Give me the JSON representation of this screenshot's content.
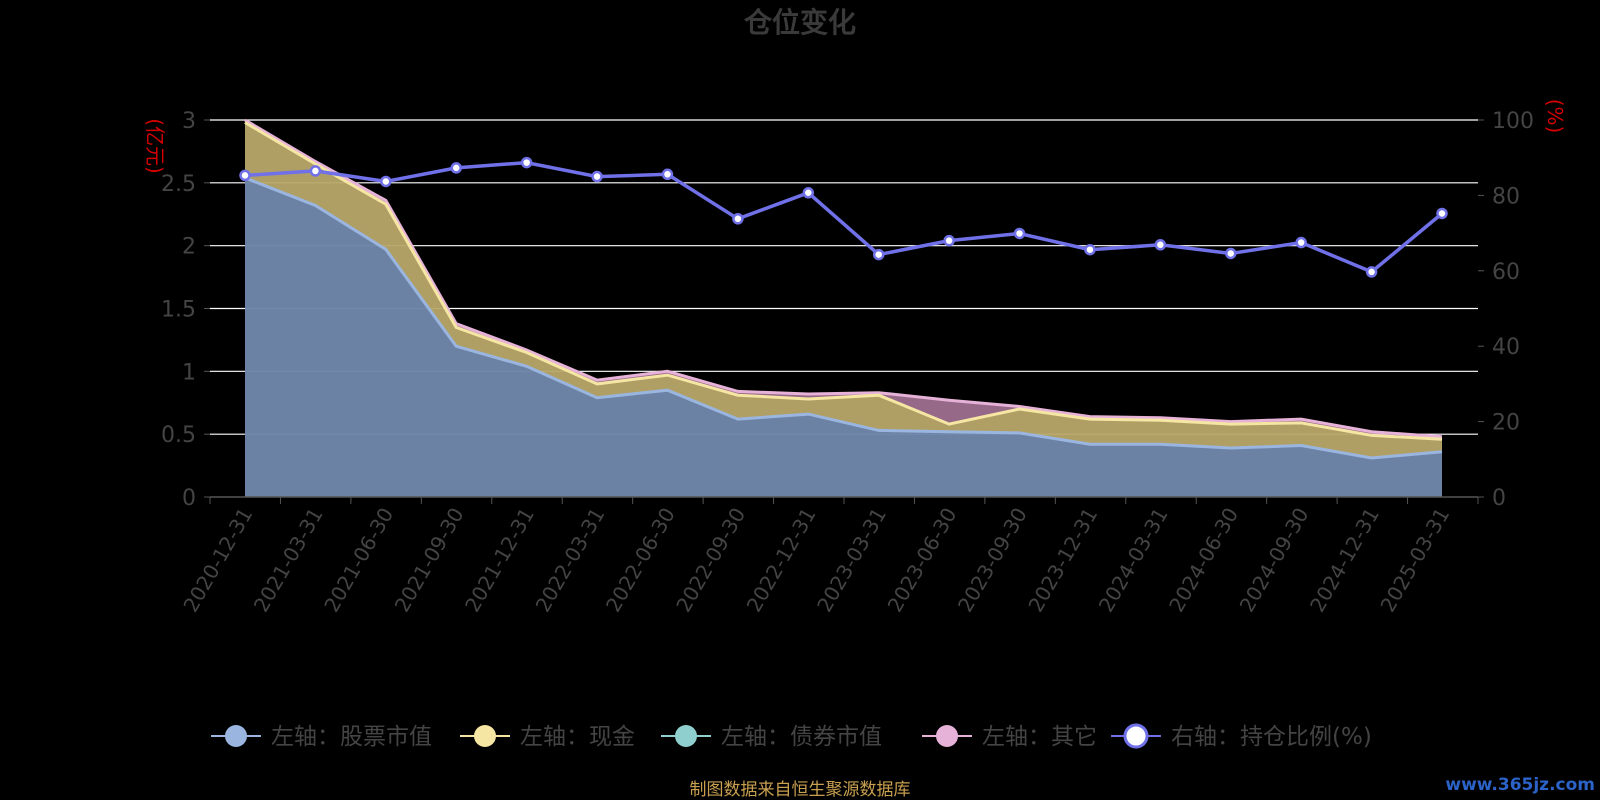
{
  "title": "仓位变化",
  "left_unit": "(亿元)",
  "right_unit": "(%)",
  "source_note": "制图数据来自恒生聚源数据库",
  "watermark": "www.365jz.com",
  "colors": {
    "stock": "#9ab6e0",
    "cash": "#f5e6a3",
    "bond": "#8fd0cf",
    "other": "#e6b2d8",
    "ratio": "#7070e8",
    "grid": "#ffffff",
    "axis": "#555555"
  },
  "chart_data": {
    "type": "area",
    "title": "仓位变化",
    "x": [
      "2020-12-31",
      "2021-03-31",
      "2021-06-30",
      "2021-09-30",
      "2021-12-31",
      "2022-03-31",
      "2022-06-30",
      "2022-09-30",
      "2022-12-31",
      "2023-03-31",
      "2023-06-30",
      "2023-09-30",
      "2023-12-31",
      "2024-03-31",
      "2024-06-30",
      "2024-09-30",
      "2024-12-31",
      "2025-03-31"
    ],
    "y_left": {
      "label": "(亿元)",
      "range": [
        0,
        3
      ],
      "ticks": [
        0,
        0.5,
        1,
        1.5,
        2,
        2.5,
        3
      ]
    },
    "y_right": {
      "label": "(%)",
      "range": [
        0,
        100
      ],
      "ticks": [
        0,
        20,
        40,
        60,
        80,
        100
      ]
    },
    "grid": true,
    "legend_position": "bottom",
    "series": [
      {
        "name": "左轴：股票市值",
        "axis": "left",
        "key": "stock",
        "values": [
          2.54,
          2.32,
          1.97,
          1.2,
          1.04,
          0.79,
          0.85,
          0.62,
          0.66,
          0.53,
          0.52,
          0.51,
          0.42,
          0.42,
          0.39,
          0.41,
          0.31,
          0.36
        ]
      },
      {
        "name": "左轴：现金",
        "axis": "left",
        "key": "cash",
        "values": [
          0.44,
          0.33,
          0.36,
          0.15,
          0.11,
          0.11,
          0.12,
          0.19,
          0.12,
          0.28,
          0.06,
          0.19,
          0.2,
          0.19,
          0.19,
          0.18,
          0.18,
          0.1
        ]
      },
      {
        "name": "左轴：债券市值",
        "axis": "left",
        "key": "bond",
        "values": [
          0,
          0,
          0,
          0,
          0,
          0,
          0,
          0,
          0,
          0,
          0,
          0,
          0,
          0,
          0,
          0,
          0,
          0
        ]
      },
      {
        "name": "左轴：其它",
        "axis": "left",
        "key": "other",
        "values": [
          0.02,
          0.02,
          0.03,
          0.03,
          0.02,
          0.03,
          0.03,
          0.03,
          0.04,
          0.02,
          0.19,
          0.02,
          0.02,
          0.02,
          0.02,
          0.03,
          0.03,
          0.02
        ]
      },
      {
        "name": "右轴：持仓比例(%)",
        "axis": "right",
        "key": "ratio",
        "type": "line",
        "values": [
          85.3,
          86.5,
          83.7,
          87.3,
          88.7,
          85.0,
          85.6,
          73.8,
          80.7,
          64.3,
          68.0,
          69.9,
          65.6,
          66.9,
          64.6,
          67.5,
          59.7,
          75.2
        ]
      }
    ]
  }
}
